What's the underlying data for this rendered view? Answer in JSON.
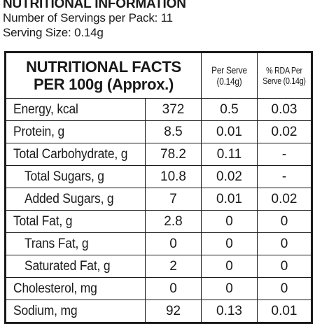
{
  "header": {
    "title": "NUTRITIONAL INFORMATION",
    "servings_line": "Number of Servings per Pack: 11",
    "serving_size_line": "Serving Size: 0.14g"
  },
  "table": {
    "col_heads": {
      "facts_line1": "NUTRITIONAL FACTS",
      "facts_line2": "PER 100g (Approx.)",
      "per_serve_line1": "Per Serve",
      "per_serve_line2": "(0.14g)",
      "rda_line1": "% RDA Per",
      "rda_line2": "Serve (0.14g)"
    },
    "rows": [
      {
        "name": "Energy, kcal",
        "per100": "372",
        "per_serve": "0.5",
        "rda": "0.03"
      },
      {
        "name": "Protein, g",
        "per100": "8.5",
        "per_serve": "0.01",
        "rda": "0.02"
      },
      {
        "name": "Total Carbohydrate, g",
        "per100": "78.2",
        "per_serve": "0.11",
        "rda": "-"
      },
      {
        "name": "Total Sugars, g",
        "per100": "10.8",
        "per_serve": "0.02",
        "rda": "-"
      },
      {
        "name": "Added Sugars, g",
        "per100": "7",
        "per_serve": "0.01",
        "rda": "0.02"
      },
      {
        "name": "Total Fat, g",
        "per100": "2.8",
        "per_serve": "0",
        "rda": "0"
      },
      {
        "name": "Trans Fat, g",
        "per100": "0",
        "per_serve": "0",
        "rda": "0"
      },
      {
        "name": "Saturated Fat, g",
        "per100": "2",
        "per_serve": "0",
        "rda": "0"
      },
      {
        "name": "Cholesterol, mg",
        "per100": "0",
        "per_serve": "0",
        "rda": "0"
      },
      {
        "name": "Sodium, mg",
        "per100": "92",
        "per_serve": "0.13",
        "rda": "0.01"
      }
    ]
  }
}
